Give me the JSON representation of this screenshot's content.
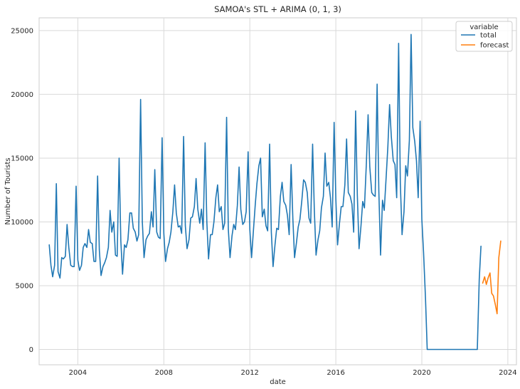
{
  "chart_data": {
    "type": "line",
    "title": "SAMOA's STL + ARIMA (0, 1, 3)",
    "xlabel": "date",
    "ylabel": "Number of Tourists",
    "xlim": [
      2002.2,
      2024.4
    ],
    "ylim": [
      -1200,
      26000
    ],
    "x_ticks": [
      2004,
      2008,
      2012,
      2016,
      2020,
      2024
    ],
    "y_ticks": [
      0,
      5000,
      10000,
      15000,
      20000,
      25000
    ],
    "grid": true,
    "legend": {
      "title": "variable",
      "placement": "top-right"
    },
    "series": [
      {
        "name": "total",
        "color": "#1f77b4",
        "points": [
          [
            2002.67,
            8200
          ],
          [
            2002.75,
            6600
          ],
          [
            2002.83,
            5700
          ],
          [
            2002.92,
            6600
          ],
          [
            2003.0,
            13000
          ],
          [
            2003.08,
            6100
          ],
          [
            2003.17,
            5600
          ],
          [
            2003.25,
            7200
          ],
          [
            2003.33,
            7100
          ],
          [
            2003.42,
            7300
          ],
          [
            2003.5,
            9800
          ],
          [
            2003.58,
            8000
          ],
          [
            2003.67,
            6600
          ],
          [
            2003.75,
            6500
          ],
          [
            2003.83,
            6500
          ],
          [
            2003.92,
            12800
          ],
          [
            2004.0,
            7000
          ],
          [
            2004.08,
            6200
          ],
          [
            2004.17,
            6600
          ],
          [
            2004.25,
            8000
          ],
          [
            2004.33,
            8300
          ],
          [
            2004.42,
            8000
          ],
          [
            2004.5,
            9400
          ],
          [
            2004.58,
            8400
          ],
          [
            2004.67,
            8300
          ],
          [
            2004.75,
            6900
          ],
          [
            2004.83,
            6900
          ],
          [
            2004.92,
            13600
          ],
          [
            2005.0,
            7800
          ],
          [
            2005.08,
            5800
          ],
          [
            2005.17,
            6500
          ],
          [
            2005.25,
            6800
          ],
          [
            2005.33,
            7200
          ],
          [
            2005.42,
            8000
          ],
          [
            2005.5,
            10900
          ],
          [
            2005.58,
            9200
          ],
          [
            2005.67,
            10000
          ],
          [
            2005.75,
            7400
          ],
          [
            2005.83,
            7300
          ],
          [
            2005.92,
            15000
          ],
          [
            2006.0,
            8500
          ],
          [
            2006.08,
            5900
          ],
          [
            2006.17,
            8200
          ],
          [
            2006.25,
            8000
          ],
          [
            2006.33,
            8600
          ],
          [
            2006.42,
            10700
          ],
          [
            2006.5,
            10700
          ],
          [
            2006.58,
            9500
          ],
          [
            2006.67,
            9200
          ],
          [
            2006.75,
            8500
          ],
          [
            2006.83,
            9000
          ],
          [
            2006.92,
            19600
          ],
          [
            2007.0,
            10000
          ],
          [
            2007.08,
            7200
          ],
          [
            2007.17,
            8600
          ],
          [
            2007.25,
            8900
          ],
          [
            2007.33,
            9100
          ],
          [
            2007.42,
            10800
          ],
          [
            2007.5,
            9600
          ],
          [
            2007.58,
            14100
          ],
          [
            2007.67,
            9200
          ],
          [
            2007.75,
            8800
          ],
          [
            2007.83,
            8700
          ],
          [
            2007.92,
            16600
          ],
          [
            2008.0,
            9100
          ],
          [
            2008.08,
            6900
          ],
          [
            2008.17,
            7900
          ],
          [
            2008.25,
            8400
          ],
          [
            2008.33,
            9200
          ],
          [
            2008.42,
            10800
          ],
          [
            2008.5,
            12900
          ],
          [
            2008.58,
            10700
          ],
          [
            2008.67,
            9600
          ],
          [
            2008.75,
            9700
          ],
          [
            2008.83,
            9100
          ],
          [
            2008.92,
            16700
          ],
          [
            2009.0,
            9700
          ],
          [
            2009.08,
            7900
          ],
          [
            2009.17,
            8600
          ],
          [
            2009.25,
            10300
          ],
          [
            2009.33,
            10400
          ],
          [
            2009.42,
            11200
          ],
          [
            2009.5,
            13400
          ],
          [
            2009.58,
            11000
          ],
          [
            2009.67,
            9900
          ],
          [
            2009.75,
            11000
          ],
          [
            2009.83,
            9400
          ],
          [
            2009.92,
            16200
          ],
          [
            2010.0,
            10000
          ],
          [
            2010.08,
            7100
          ],
          [
            2010.17,
            9000
          ],
          [
            2010.25,
            9000
          ],
          [
            2010.33,
            10000
          ],
          [
            2010.42,
            11900
          ],
          [
            2010.5,
            12900
          ],
          [
            2010.58,
            10800
          ],
          [
            2010.67,
            11200
          ],
          [
            2010.75,
            9400
          ],
          [
            2010.83,
            9900
          ],
          [
            2010.92,
            18200
          ],
          [
            2011.0,
            9400
          ],
          [
            2011.08,
            7200
          ],
          [
            2011.17,
            8900
          ],
          [
            2011.25,
            9800
          ],
          [
            2011.33,
            9400
          ],
          [
            2011.42,
            11300
          ],
          [
            2011.5,
            14300
          ],
          [
            2011.58,
            11000
          ],
          [
            2011.67,
            9800
          ],
          [
            2011.75,
            10000
          ],
          [
            2011.83,
            10800
          ],
          [
            2011.92,
            15500
          ],
          [
            2012.0,
            9400
          ],
          [
            2012.08,
            7200
          ],
          [
            2012.17,
            9400
          ],
          [
            2012.25,
            11300
          ],
          [
            2012.33,
            13000
          ],
          [
            2012.42,
            14400
          ],
          [
            2012.5,
            15000
          ],
          [
            2012.58,
            10400
          ],
          [
            2012.67,
            11000
          ],
          [
            2012.75,
            9700
          ],
          [
            2012.83,
            9300
          ],
          [
            2012.92,
            16100
          ],
          [
            2013.0,
            9200
          ],
          [
            2013.08,
            6500
          ],
          [
            2013.17,
            8200
          ],
          [
            2013.25,
            9500
          ],
          [
            2013.33,
            9400
          ],
          [
            2013.42,
            12000
          ],
          [
            2013.5,
            13100
          ],
          [
            2013.58,
            11600
          ],
          [
            2013.67,
            11300
          ],
          [
            2013.75,
            10500
          ],
          [
            2013.83,
            9000
          ],
          [
            2013.92,
            14500
          ],
          [
            2014.0,
            10300
          ],
          [
            2014.08,
            7200
          ],
          [
            2014.17,
            8400
          ],
          [
            2014.25,
            9600
          ],
          [
            2014.33,
            10200
          ],
          [
            2014.42,
            11700
          ],
          [
            2014.5,
            13300
          ],
          [
            2014.58,
            13100
          ],
          [
            2014.67,
            12300
          ],
          [
            2014.75,
            10300
          ],
          [
            2014.83,
            9900
          ],
          [
            2014.92,
            16100
          ],
          [
            2015.0,
            10900
          ],
          [
            2015.08,
            7400
          ],
          [
            2015.17,
            8600
          ],
          [
            2015.25,
            9300
          ],
          [
            2015.33,
            11100
          ],
          [
            2015.42,
            12000
          ],
          [
            2015.5,
            15400
          ],
          [
            2015.58,
            12800
          ],
          [
            2015.67,
            13100
          ],
          [
            2015.75,
            11900
          ],
          [
            2015.83,
            9600
          ],
          [
            2015.92,
            17800
          ],
          [
            2016.0,
            11800
          ],
          [
            2016.08,
            8200
          ],
          [
            2016.17,
            9900
          ],
          [
            2016.25,
            11200
          ],
          [
            2016.33,
            11200
          ],
          [
            2016.42,
            12900
          ],
          [
            2016.5,
            16500
          ],
          [
            2016.58,
            12300
          ],
          [
            2016.67,
            12000
          ],
          [
            2016.75,
            11400
          ],
          [
            2016.83,
            9200
          ],
          [
            2016.92,
            18700
          ],
          [
            2017.0,
            12100
          ],
          [
            2017.08,
            7900
          ],
          [
            2017.17,
            9700
          ],
          [
            2017.25,
            11600
          ],
          [
            2017.33,
            11100
          ],
          [
            2017.42,
            14600
          ],
          [
            2017.5,
            18400
          ],
          [
            2017.58,
            14300
          ],
          [
            2017.67,
            12300
          ],
          [
            2017.75,
            12100
          ],
          [
            2017.83,
            12000
          ],
          [
            2017.92,
            20800
          ],
          [
            2018.0,
            12400
          ],
          [
            2018.08,
            7400
          ],
          [
            2018.17,
            11700
          ],
          [
            2018.25,
            10900
          ],
          [
            2018.33,
            13200
          ],
          [
            2018.42,
            15900
          ],
          [
            2018.5,
            19200
          ],
          [
            2018.58,
            16700
          ],
          [
            2018.67,
            14800
          ],
          [
            2018.75,
            14500
          ],
          [
            2018.83,
            11900
          ],
          [
            2018.92,
            24000
          ],
          [
            2019.0,
            13000
          ],
          [
            2019.08,
            9000
          ],
          [
            2019.17,
            10800
          ],
          [
            2019.25,
            14400
          ],
          [
            2019.33,
            13600
          ],
          [
            2019.42,
            16400
          ],
          [
            2019.5,
            24700
          ],
          [
            2019.58,
            17400
          ],
          [
            2019.67,
            16300
          ],
          [
            2019.75,
            14800
          ],
          [
            2019.83,
            11900
          ],
          [
            2019.92,
            17900
          ],
          [
            2020.0,
            10200
          ],
          [
            2020.08,
            7600
          ],
          [
            2020.17,
            4000
          ],
          [
            2020.25,
            0
          ],
          [
            2020.33,
            0
          ],
          [
            2020.42,
            0
          ],
          [
            2020.5,
            0
          ],
          [
            2020.58,
            0
          ],
          [
            2020.67,
            0
          ],
          [
            2020.75,
            0
          ],
          [
            2020.83,
            0
          ],
          [
            2020.92,
            0
          ],
          [
            2021.0,
            0
          ],
          [
            2021.08,
            0
          ],
          [
            2021.17,
            0
          ],
          [
            2021.25,
            0
          ],
          [
            2021.33,
            0
          ],
          [
            2021.42,
            0
          ],
          [
            2021.5,
            0
          ],
          [
            2021.58,
            0
          ],
          [
            2021.67,
            0
          ],
          [
            2021.75,
            0
          ],
          [
            2021.83,
            0
          ],
          [
            2021.92,
            0
          ],
          [
            2022.0,
            0
          ],
          [
            2022.08,
            0
          ],
          [
            2022.17,
            0
          ],
          [
            2022.25,
            0
          ],
          [
            2022.33,
            0
          ],
          [
            2022.42,
            0
          ],
          [
            2022.5,
            0
          ],
          [
            2022.58,
            0
          ],
          [
            2022.67,
            5500
          ],
          [
            2022.75,
            8100
          ]
        ]
      },
      {
        "name": "forecast",
        "color": "#ff7f0e",
        "points": [
          [
            2022.83,
            5200
          ],
          [
            2022.92,
            5700
          ],
          [
            2023.0,
            5100
          ],
          [
            2023.08,
            5600
          ],
          [
            2023.17,
            6000
          ],
          [
            2023.25,
            4400
          ],
          [
            2023.33,
            4200
          ],
          [
            2023.42,
            3500
          ],
          [
            2023.5,
            2800
          ],
          [
            2023.58,
            7200
          ],
          [
            2023.67,
            8500
          ]
        ]
      }
    ]
  }
}
